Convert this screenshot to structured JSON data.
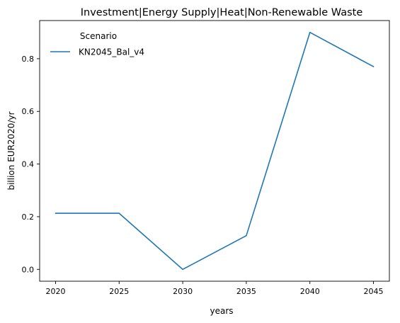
{
  "chart_data": {
    "type": "line",
    "title": "Investment|Energy Supply|Heat|Non-Renewable Waste",
    "xlabel": "years",
    "ylabel": "billion EUR2020/yr",
    "x": [
      2020,
      2025,
      2030,
      2035,
      2040,
      2045
    ],
    "x_ticks": [
      "2020",
      "2025",
      "2030",
      "2035",
      "2040",
      "2045"
    ],
    "y_ticks": [
      "0.0",
      "0.2",
      "0.4",
      "0.6",
      "0.8"
    ],
    "xlim": [
      2018.75,
      2046.25
    ],
    "ylim": [
      -0.045,
      0.945
    ],
    "grid": false,
    "legend": {
      "title": "Scenario",
      "placement": "top-left"
    },
    "series": [
      {
        "name": "KN2045_Bal_v4",
        "color": "#1f77b4",
        "values": [
          0.213,
          0.213,
          0.0,
          0.128,
          0.9,
          0.77
        ]
      }
    ]
  }
}
